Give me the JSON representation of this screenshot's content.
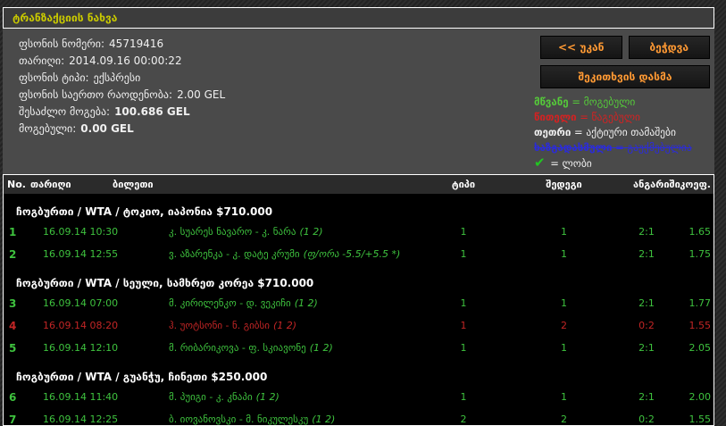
{
  "title": "ტრანზაქციის ნახვა",
  "info": {
    "lines": [
      {
        "label": "ფსონის ნომერი:",
        "value": "45719416",
        "bold": false
      },
      {
        "label": "თარიღი:",
        "value": "2014.09.16 00:00:22",
        "bold": false
      },
      {
        "label": "ფსონის ტიპი:",
        "value": "ექსპრესი",
        "bold": false
      },
      {
        "label": "ფსონის საერთო რაოდენობა:",
        "value": "2.00 GEL",
        "bold": false
      },
      {
        "label": "შესაძლო მოგება:",
        "value": "100.686 GEL",
        "bold": true
      },
      {
        "label": "მოგებული:",
        "value": "0.00 GEL",
        "bold": true
      }
    ]
  },
  "buttons": {
    "back": "<< უკან",
    "print": "ბეჭდვა",
    "ask": "შეკითხვის დასმა"
  },
  "legend_eq": "=",
  "legend": [
    {
      "term": "მწვანე",
      "desc": "მოგებული",
      "color": "#55c93a",
      "strike": false,
      "icon": "",
      "icon_glyph": "",
      "icon_color": ""
    },
    {
      "term": "წითელი",
      "desc": "წაგებული",
      "color": "#d32222",
      "strike": false,
      "icon": "",
      "icon_glyph": "",
      "icon_color": ""
    },
    {
      "term": "თეთრი",
      "desc": "აქტიური თამაშები",
      "color": "#efefef",
      "strike": false,
      "icon": "",
      "icon_glyph": "",
      "icon_color": ""
    },
    {
      "term": "ხაზგადასმული",
      "desc": "გაუქმებულია",
      "color": "#2b2bdb",
      "strike": true,
      "icon": "",
      "icon_glyph": "",
      "icon_color": ""
    },
    {
      "term": "",
      "desc": "ლობი",
      "color": "#efefef",
      "strike": false,
      "icon": "check-icon",
      "icon_glyph": "✔",
      "icon_color": "#22c522"
    }
  ],
  "table": {
    "headers": [
      "No.",
      "თარიღი",
      "ბილეთი",
      "ტიპი",
      "შედეგი",
      "ანგარიში",
      "კოეფ."
    ],
    "status_colors": {
      "won": "#3ec23e",
      "lost": "#c22525"
    },
    "groups": [
      {
        "title": "ჩოგბურთი / WTA / ტოკიო, იაპონია $710.000",
        "rows": [
          {
            "no": "1",
            "date": "16.09.14 10:30",
            "match": "კ. სუარეს ნავარო - კ. ნარა",
            "note": "(1 2)",
            "type": "1",
            "result": "1",
            "score": "2:1",
            "coef": "1.65",
            "status": "won"
          },
          {
            "no": "2",
            "date": "16.09.14 12:55",
            "match": "ვ. აზარენკა - კ. დატე კრუმი",
            "note": "(ფ/ორა -5.5/+5.5 *)",
            "type": "1",
            "result": "1",
            "score": "2:1",
            "coef": "1.75",
            "status": "won"
          }
        ]
      },
      {
        "title": "ჩოგბურთი / WTA / სეული, სამხრეთ კორეა $710.000",
        "rows": [
          {
            "no": "3",
            "date": "16.09.14 07:00",
            "match": "მ. კირილენკო - დ. ვეკიჩი",
            "note": "(1 2)",
            "type": "1",
            "result": "1",
            "score": "2:1",
            "coef": "1.77",
            "status": "won"
          },
          {
            "no": "4",
            "date": "16.09.14 08:20",
            "match": "ჰ. უოტსონი - ნ. გიბსი",
            "note": "(1 2)",
            "type": "1",
            "result": "2",
            "score": "0:2",
            "coef": "1.55",
            "status": "lost"
          },
          {
            "no": "5",
            "date": "16.09.14 12:10",
            "match": "მ. რიბარიკოვა - ფ. სკიავონე",
            "note": "(1 2)",
            "type": "1",
            "result": "1",
            "score": "2:1",
            "coef": "2.05",
            "status": "won"
          }
        ]
      },
      {
        "title": "ჩოგბურთი / WTA / გუანჭუ, ჩინეთი $250.000",
        "rows": [
          {
            "no": "6",
            "date": "16.09.14 11:40",
            "match": "მ. პუიგი - კ. კნაპი",
            "note": "(1 2)",
            "type": "1",
            "result": "1",
            "score": "2:1",
            "coef": "2.00",
            "status": "won"
          },
          {
            "no": "7",
            "date": "16.09.14 12:25",
            "match": "ბ. იოვანოვსკი - მ. ნიკულესკუ",
            "note": "(1 2)",
            "type": "2",
            "result": "2",
            "score": "0:2",
            "coef": "1.55",
            "status": "won"
          }
        ]
      }
    ]
  },
  "colors": {
    "title_text": "#c9c900",
    "button_text": "#ff9933",
    "panel_bg": "#4a4a4a",
    "table_bg": "#000000",
    "header_row_bg": "#2b2b2b"
  }
}
